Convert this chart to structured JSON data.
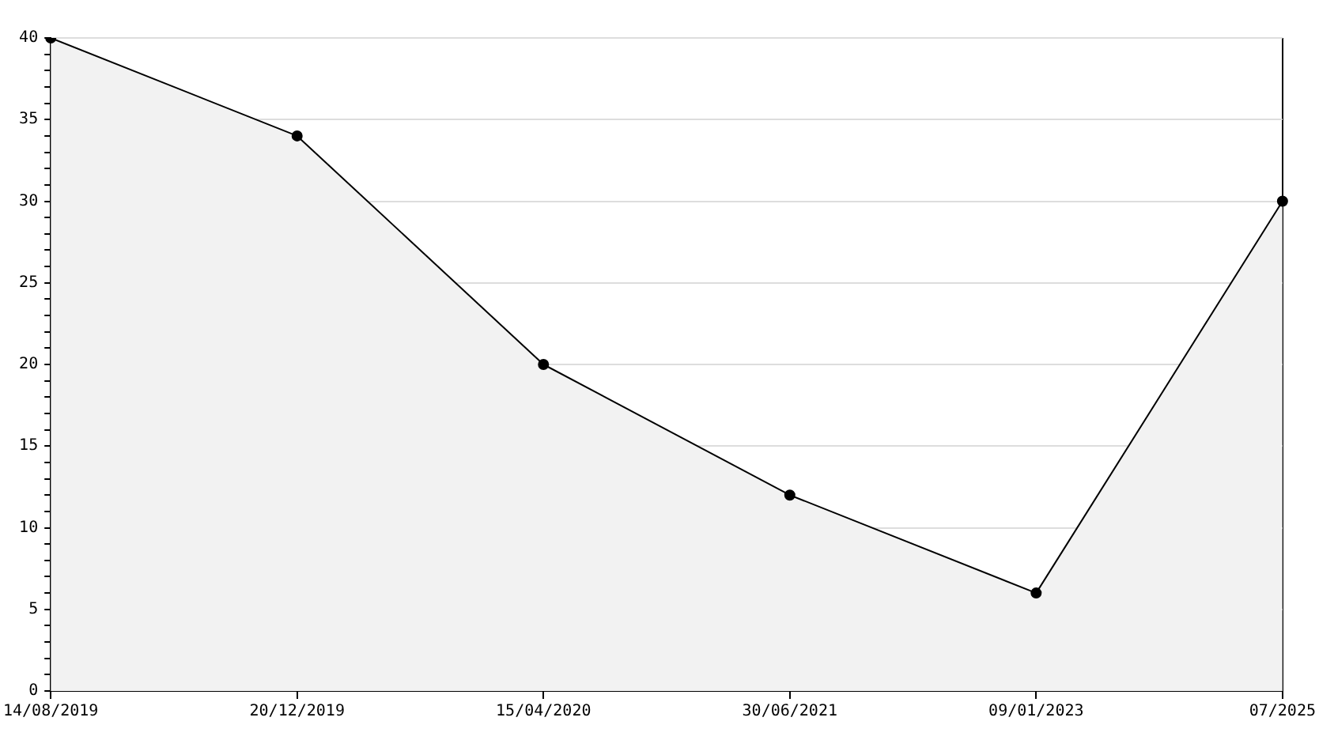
{
  "chart_data": {
    "type": "area",
    "categories": [
      "14/08/2019",
      "20/12/2019",
      "15/04/2020",
      "30/06/2021",
      "09/01/2023",
      "07/2025"
    ],
    "series": [
      {
        "color": "#000000",
        "values": [
          40,
          34,
          20,
          12,
          6,
          30
        ]
      }
    ],
    "ylim": [
      0,
      40
    ],
    "yticks": [
      0,
      {
        "value": 1,
        "label": null
      },
      {
        "value": 2,
        "label": null
      },
      {
        "value": 3,
        "label": null
      },
      {
        "value": 4,
        "label": null
      },
      5,
      {
        "value": 6,
        "label": null
      },
      {
        "value": 7,
        "label": null
      },
      {
        "value": 8,
        "label": null
      },
      {
        "value": 9,
        "label": null
      },
      10,
      {
        "value": 11,
        "label": null
      },
      {
        "value": 12,
        "label": null
      },
      {
        "value": 13,
        "label": null
      },
      {
        "value": 14,
        "label": null
      },
      15,
      {
        "value": 16,
        "label": null
      },
      {
        "value": 17,
        "label": null
      },
      {
        "value": 18,
        "label": null
      },
      {
        "value": 19,
        "label": null
      },
      20,
      {
        "value": 21,
        "label": null
      },
      {
        "value": 22,
        "label": null
      },
      {
        "value": 23,
        "label": null
      },
      {
        "value": 24,
        "label": null
      },
      25,
      {
        "value": 26,
        "label": null
      },
      {
        "value": 27,
        "label": null
      },
      {
        "value": 28,
        "label": null
      },
      {
        "value": 29,
        "label": null
      },
      30,
      {
        "value": 31,
        "label": null
      },
      {
        "value": 32,
        "label": null
      },
      {
        "value": 33,
        "label": null
      },
      {
        "value": 34,
        "label": null
      },
      35,
      {
        "value": 36,
        "label": null
      },
      {
        "value": 37,
        "label": null
      },
      {
        "value": 38,
        "label": null
      },
      {
        "value": 39,
        "label": null
      },
      40
    ],
    "grid": "y",
    "legend": false,
    "marker": "circle",
    "line_style": "solid"
  }
}
